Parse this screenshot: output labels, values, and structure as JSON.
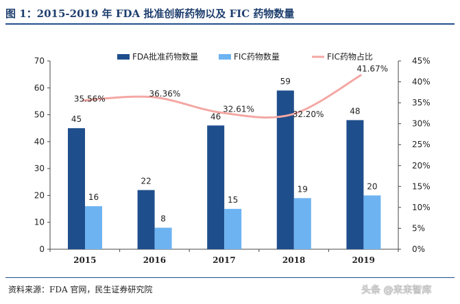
{
  "figure": {
    "title": "图 1：2015-2019 年 FDA 批准创新药物以及 FIC 药物数量",
    "source": "资料来源：FDA 官网，民生证券研究院",
    "watermark": "头条 @来来智库"
  },
  "colors": {
    "fda": "#1f4e8c",
    "fic": "#6db3f2",
    "line": "#f4a7a3",
    "rule": "#1f4e8c",
    "title": "#1f3f6e"
  },
  "chart_data": {
    "type": "bar",
    "categories": [
      "2015",
      "2016",
      "2017",
      "2018",
      "2019"
    ],
    "series": [
      {
        "name": "FDA批准药物数量",
        "type": "bar",
        "axis": "left",
        "values": [
          45,
          22,
          46,
          59,
          48
        ],
        "labels": [
          "45",
          "22",
          "46",
          "59",
          "48"
        ]
      },
      {
        "name": "FIC药物数量",
        "type": "bar",
        "axis": "left",
        "values": [
          16,
          8,
          15,
          19,
          20
        ],
        "labels": [
          "16",
          "8",
          "15",
          "19",
          "20"
        ]
      },
      {
        "name": "FIC药物占比",
        "type": "line",
        "axis": "right",
        "values": [
          35.56,
          36.36,
          32.61,
          32.2,
          41.67
        ],
        "labels": [
          "35.56%",
          "36.36%",
          "32.61%",
          "32.20%",
          "41.67%"
        ]
      }
    ],
    "y_left": {
      "min": 0,
      "max": 70,
      "ticks": [
        "0",
        "10",
        "20",
        "30",
        "40",
        "50",
        "60",
        "70"
      ]
    },
    "y_right": {
      "min": 0,
      "max": 45,
      "ticks": [
        "0%",
        "5%",
        "10%",
        "15%",
        "20%",
        "25%",
        "30%",
        "35%",
        "40%",
        "45%"
      ]
    },
    "legend": {
      "position": "top"
    }
  }
}
